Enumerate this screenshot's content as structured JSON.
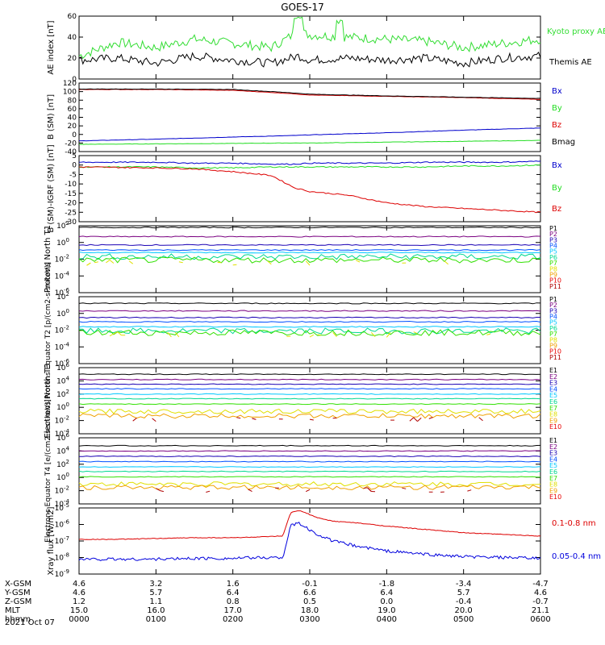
{
  "title": "GOES-17",
  "date": "2021 Oct 07",
  "ephemeris": {
    "labels": [
      "X-GSM",
      "Y-GSM",
      "Z-GSM",
      "MLT",
      "hhmm"
    ],
    "columns": [
      {
        "x_gsm": "4.6",
        "y_gsm": "4.6",
        "z_gsm": "1.2",
        "mlt": "15.0",
        "hhmm": "0000"
      },
      {
        "x_gsm": "3.2",
        "y_gsm": "5.7",
        "z_gsm": "1.1",
        "mlt": "16.0",
        "hhmm": "0100"
      },
      {
        "x_gsm": "1.6",
        "y_gsm": "6.4",
        "z_gsm": "0.8",
        "mlt": "17.0",
        "hhmm": "0200"
      },
      {
        "x_gsm": "-0.1",
        "y_gsm": "6.6",
        "z_gsm": "0.5",
        "mlt": "18.0",
        "hhmm": "0300"
      },
      {
        "x_gsm": "-1.8",
        "y_gsm": "6.4",
        "z_gsm": "0.0",
        "mlt": "19.0",
        "hhmm": "0400"
      },
      {
        "x_gsm": "-3.4",
        "y_gsm": "5.7",
        "z_gsm": "-0.4",
        "mlt": "20.0",
        "hhmm": "0500"
      },
      {
        "x_gsm": "-4.7",
        "y_gsm": "4.6",
        "z_gsm": "-0.7",
        "mlt": "21.1",
        "hhmm": "0600"
      }
    ]
  },
  "colors": {
    "bx": "#0000cc",
    "by": "#22dd22",
    "bz": "#dd0000",
    "bmag": "#000000",
    "ae_kyoto": "#33dd33",
    "ae_themis": "#000000",
    "xray_long": "#dd0000",
    "xray_short": "#0000dd",
    "channels": [
      "#000000",
      "#7a0080",
      "#1a00b4",
      "#0050ff",
      "#00c8ff",
      "#00d890",
      "#30e000",
      "#e0e000",
      "#f0a000",
      "#e80000",
      "#b00000"
    ]
  },
  "chart_data": [
    {
      "type": "line",
      "ylabel": "AE index [nT]",
      "ylim": [
        0,
        60
      ],
      "yticks": [
        "0",
        "20",
        "40",
        "60"
      ],
      "x_hours": [
        0,
        0.5,
        1,
        1.5,
        2,
        2.5,
        2.85,
        3,
        3.5,
        4,
        4.5,
        5,
        5.5,
        6
      ],
      "series": [
        {
          "name": "Kyoto proxy AE",
          "color_key": "ae_kyoto",
          "values": [
            22,
            35,
            30,
            38,
            34,
            30,
            45,
            42,
            40,
            38,
            36,
            30,
            34,
            38
          ]
        },
        {
          "name": "Themis AE",
          "color_key": "ae_themis",
          "values": [
            18,
            20,
            15,
            22,
            18,
            15,
            22,
            18,
            20,
            18,
            20,
            15,
            20,
            22
          ]
        }
      ]
    },
    {
      "type": "line",
      "ylabel": "B (SM) [nT]",
      "ylim": [
        -40,
        120
      ],
      "yticks": [
        "-40",
        "-20",
        "0",
        "20",
        "40",
        "60",
        "80",
        "100",
        "120"
      ],
      "x_hours": [
        0,
        1,
        2,
        2.7,
        3,
        4,
        5,
        6
      ],
      "series": [
        {
          "name": "Bx",
          "color_key": "bx",
          "values": [
            -15,
            -11,
            -6,
            -3,
            -1,
            4,
            10,
            15
          ]
        },
        {
          "name": "By",
          "color_key": "by",
          "values": [
            -23,
            -22,
            -21,
            -20,
            -20,
            -18,
            -16,
            -14
          ]
        },
        {
          "name": "Bz",
          "color_key": "bz",
          "values": [
            105,
            105,
            103,
            96,
            92,
            89,
            86,
            82
          ]
        },
        {
          "name": "Bmag",
          "color_key": "bmag",
          "values": [
            106,
            106,
            105,
            98,
            94,
            90,
            87,
            84
          ]
        }
      ]
    },
    {
      "type": "line",
      "ylabel": "B (SM)-IGRF (SM) [nT]",
      "ylim": [
        -30,
        5
      ],
      "yticks": [
        "-30",
        "-25",
        "-20",
        "-15",
        "-10",
        "-5",
        "0",
        "5"
      ],
      "x_hours": [
        0,
        1,
        1.5,
        2,
        2.5,
        2.8,
        3,
        3.5,
        4,
        4.5,
        5,
        5.5,
        6
      ],
      "series": [
        {
          "name": "Bx",
          "color_key": "bx",
          "values": [
            1.5,
            1.5,
            1,
            1,
            0.5,
            0.5,
            1,
            1,
            1,
            1.5,
            1.5,
            1.5,
            2
          ]
        },
        {
          "name": "By",
          "color_key": "by",
          "values": [
            -1,
            -1,
            -1.5,
            -1.5,
            -1,
            -1,
            -1,
            -1,
            -1,
            -1,
            -0.5,
            -0.5,
            0
          ]
        },
        {
          "name": "Bz",
          "color_key": "bz",
          "values": [
            -1,
            -1.5,
            -2,
            -3.5,
            -5.5,
            -12,
            -14,
            -16,
            -20,
            -22,
            -23,
            -24,
            -25
          ]
        }
      ]
    },
    {
      "type": "line",
      "ylabel": "Protons North T1",
      "ylog": true,
      "ylim_exp": [
        -6,
        2
      ],
      "yticks": [
        "10-6",
        "10-4",
        "10-2",
        "100",
        "102"
      ],
      "legend": [
        "P1",
        "P2",
        "P3",
        "P4",
        "P5",
        "P6",
        "P7",
        "P8",
        "P9",
        "P10",
        "P11"
      ],
      "levels_log10": [
        1.8,
        0.7,
        -0.3,
        -0.9,
        -1.2,
        -1.7,
        -2.1,
        -2.4
      ]
    },
    {
      "type": "line",
      "ylabel": "Protons Equator T2 [p/(cm2-s-sr-keV)]",
      "ylog": true,
      "ylim_exp": [
        -6,
        2
      ],
      "yticks": [
        "10-6",
        "10-4",
        "10-2",
        "100",
        "102"
      ],
      "legend": [
        "P1",
        "P2",
        "P3",
        "P4",
        "P5",
        "P6",
        "P7",
        "P8",
        "P9",
        "P10",
        "P11"
      ],
      "levels_log10": [
        1.2,
        0.3,
        -0.5,
        -1.0,
        -1.6,
        -2.1,
        -2.3,
        -2.5
      ]
    },
    {
      "type": "line",
      "ylabel": "Electrons North T3",
      "ylog": true,
      "ylim_exp": [
        -4,
        6
      ],
      "yticks": [
        "10-4",
        "10-2",
        "100",
        "102",
        "104",
        "106"
      ],
      "legend": [
        "E1",
        "E2",
        "E3",
        "E4",
        "E5",
        "E6",
        "E7",
        "E8",
        "E9",
        "E10"
      ],
      "levels_log10": [
        5.0,
        4.2,
        3.5,
        2.8,
        2.0,
        1.3,
        0.5,
        -0.6,
        -1.3,
        -1.8
      ]
    },
    {
      "type": "line",
      "ylabel": "Electrons Equator T4 [e/(cm2-s-sr-keV)]",
      "ylog": true,
      "ylim_exp": [
        -4,
        6
      ],
      "yticks": [
        "10-4",
        "10-2",
        "100",
        "102",
        "104",
        "106"
      ],
      "legend": [
        "E1",
        "E2",
        "E3",
        "E4",
        "E5",
        "E6",
        "E7",
        "E8",
        "E9",
        "E10"
      ],
      "levels_log10": [
        4.8,
        4.0,
        3.2,
        2.4,
        1.6,
        0.9,
        0.1,
        -1.0,
        -1.5,
        -1.9
      ]
    },
    {
      "type": "line",
      "ylabel": "Xray flux [W/m2]",
      "ylog": true,
      "ylim_exp": [
        -9,
        -5
      ],
      "yticks": [
        "10-9",
        "10-8",
        "10-7",
        "10-6",
        "10-5"
      ],
      "x_hours": [
        0,
        0.5,
        1,
        1.5,
        2,
        2.4,
        2.65,
        2.75,
        2.85,
        2.95,
        3.1,
        3.3,
        3.6,
        4,
        4.5,
        5,
        5.5,
        6
      ],
      "series": [
        {
          "name": "0.1-0.8 nm",
          "color_key": "xray_long",
          "values_log10": [
            -6.9,
            -6.9,
            -6.85,
            -6.8,
            -6.8,
            -6.75,
            -6.7,
            -5.3,
            -5.15,
            -5.3,
            -5.6,
            -5.8,
            -5.9,
            -6.1,
            -6.3,
            -6.5,
            -6.6,
            -6.7
          ]
        },
        {
          "name": "0.05-0.4 nm",
          "color_key": "xray_short",
          "values_log10": [
            -8.1,
            -8.1,
            -8.1,
            -8.05,
            -8.05,
            -8.0,
            -8.0,
            -6.1,
            -5.9,
            -6.2,
            -6.6,
            -7.0,
            -7.3,
            -7.6,
            -7.8,
            -7.95,
            -8.0,
            -8.05
          ]
        }
      ]
    }
  ]
}
